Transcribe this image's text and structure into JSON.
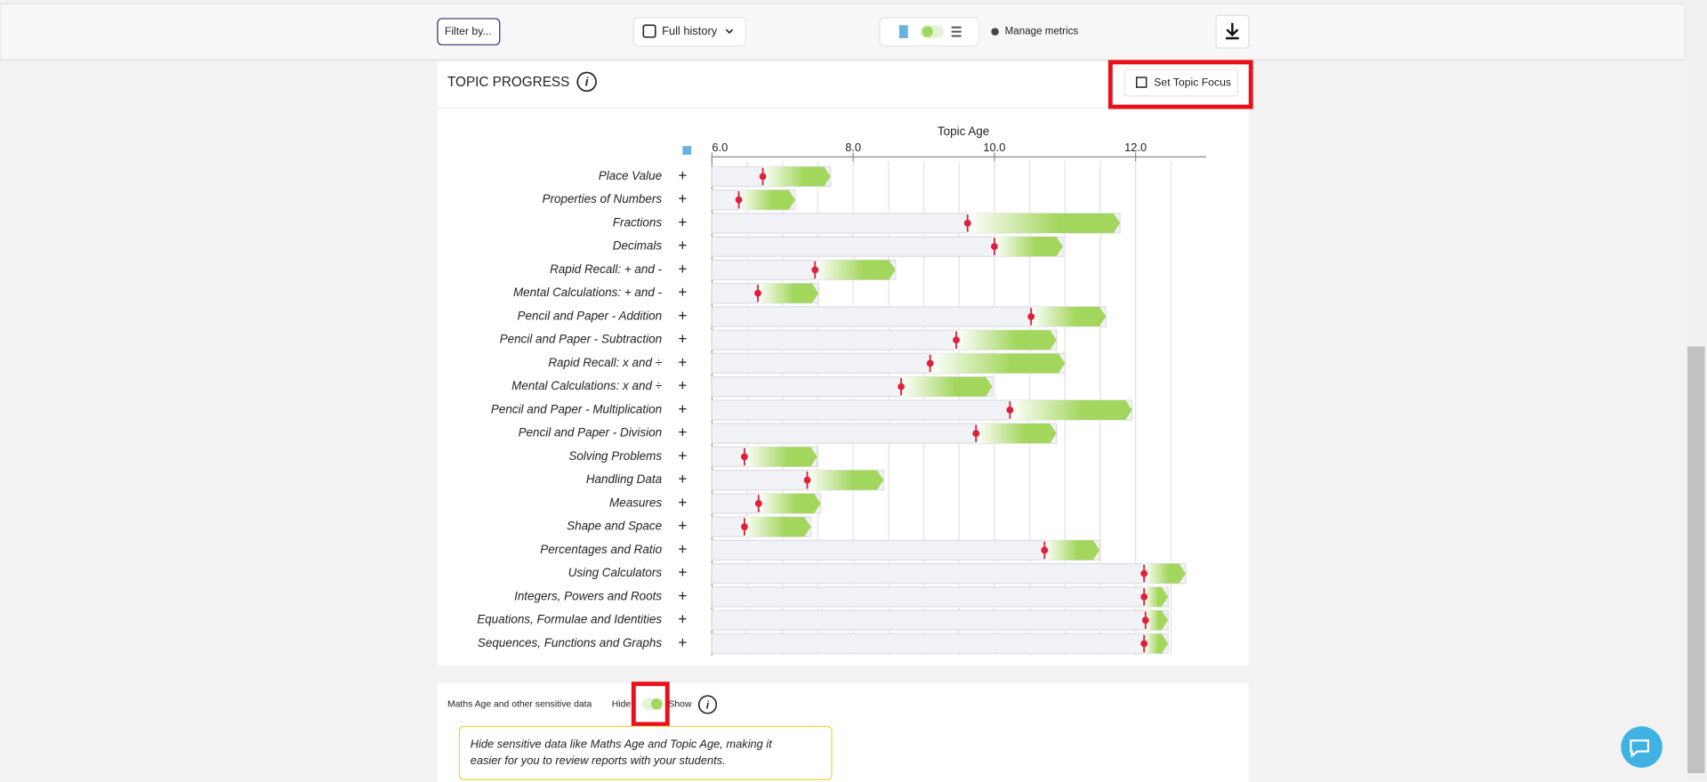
{
  "toolbar": {
    "filter": "Filter by...",
    "history": "Full history",
    "metrics": "Manage metrics"
  },
  "card": {
    "title": "TOPIC PROGRESS",
    "button": "Set Topic Focus"
  },
  "chart_data": {
    "type": "progress",
    "xlabel": "Topic Age",
    "categories": [
      "Place Value",
      "Properties of Numbers",
      "Fractions",
      "Decimals",
      "Rapid Recall: + and -",
      "Mental Calculations: + and -",
      "Pencil and Paper - Addition",
      "Pencil and Paper - Subtraction",
      "Rapid Recall: x and ÷",
      "Mental Calculations: x and ÷",
      "Pencil and Paper - Multiplication",
      "Pencil and Paper - Division",
      "Solving Problems",
      "Handling Data",
      "Measures",
      "Shape and Space",
      "Percentages and Ratio",
      "Using Calculators",
      "Integers, Powers and Roots",
      "Equations, Formulae and Identities",
      "Sequences, Functions and Graphs"
    ],
    "topic_age": [
      6.72,
      6.38,
      9.62,
      10.0,
      7.46,
      6.65,
      10.52,
      9.46,
      9.09,
      8.68,
      10.22,
      9.74,
      6.46,
      7.35,
      6.66,
      6.46,
      10.71,
      12.12,
      12.12,
      12.14,
      12.12
    ],
    "bar_end": [
      7.68,
      7.18,
      11.78,
      10.97,
      8.6,
      7.51,
      11.58,
      10.88,
      11.0,
      9.97,
      11.95,
      10.88,
      7.49,
      8.43,
      7.54,
      7.4,
      11.49,
      12.71,
      12.46,
      12.46,
      12.46
    ],
    "xlim": [
      6.0,
      13.0
    ],
    "xticks": [
      {
        "value": 6,
        "label": "6.0"
      },
      {
        "value": 8,
        "label": "8.0"
      },
      {
        "value": 10,
        "label": "10.0"
      },
      {
        "value": 12,
        "label": "12.0"
      }
    ],
    "xgrid": [
      6.5,
      7,
      7.5,
      8,
      8.5,
      9,
      9.5,
      10,
      10.5,
      11,
      11.5,
      12,
      12.5
    ],
    "marker_color": "#e0203a",
    "bar_color": "#a3d65c"
  },
  "sensitive": {
    "label": "Maths Age and other sensitive data",
    "hide": "Hide",
    "show": "Show",
    "note_line1": "Hide sensitive data like Maths Age and Topic Age, making it",
    "note_line2": "easier for you to review reports with your students."
  }
}
